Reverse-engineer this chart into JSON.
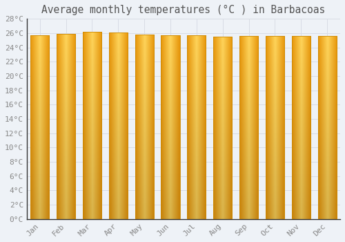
{
  "title": "Average monthly temperatures (°C ) in Barbacoas",
  "months": [
    "Jan",
    "Feb",
    "Mar",
    "Apr",
    "May",
    "Jun",
    "Jul",
    "Aug",
    "Sep",
    "Oct",
    "Nov",
    "Dec"
  ],
  "temperatures": [
    25.7,
    25.9,
    26.2,
    26.1,
    25.8,
    25.7,
    25.7,
    25.5,
    25.6,
    25.6,
    25.6,
    25.6
  ],
  "ylim": [
    0,
    28
  ],
  "yticks": [
    0,
    2,
    4,
    6,
    8,
    10,
    12,
    14,
    16,
    18,
    20,
    22,
    24,
    26,
    28
  ],
  "ytick_labels": [
    "0°C",
    "2°C",
    "4°C",
    "6°C",
    "8°C",
    "10°C",
    "12°C",
    "14°C",
    "16°C",
    "18°C",
    "20°C",
    "22°C",
    "24°C",
    "26°C",
    "28°C"
  ],
  "bar_color_edge": "#E8960A",
  "bar_color_center": "#FFD45A",
  "bar_color_outer": "#F5A800",
  "background_color": "#EEF2F7",
  "grid_color": "#D8DCE5",
  "title_fontsize": 10.5,
  "tick_fontsize": 8,
  "title_color": "#555555",
  "tick_color": "#888888",
  "bar_width": 0.72
}
